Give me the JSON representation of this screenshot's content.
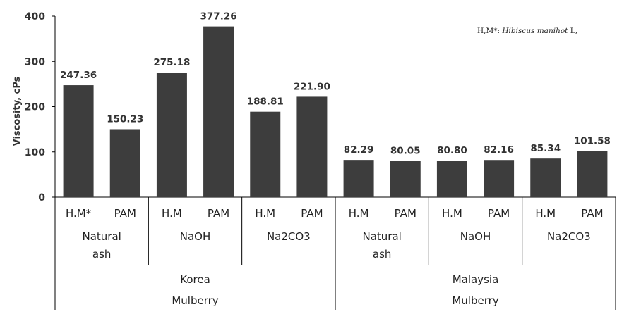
{
  "chart_data": {
    "type": "bar",
    "ylabel": "Viscosity, cPs",
    "ylim": [
      0,
      400
    ],
    "yticks": [
      "0",
      "100",
      "200",
      "300",
      "400"
    ],
    "grid": false,
    "note": {
      "prefix": "H,M*: ",
      "species": "Hibiscus manihot",
      "suffix": " L,"
    },
    "bars": [
      {
        "label": "H.M*",
        "value": 247.36,
        "value_label": "247.36"
      },
      {
        "label": "PAM",
        "value": 150.23,
        "value_label": "150.23"
      },
      {
        "label": "H.M",
        "value": 275.18,
        "value_label": "275.18"
      },
      {
        "label": "PAM",
        "value": 377.26,
        "value_label": "377.26"
      },
      {
        "label": "H.M",
        "value": 188.81,
        "value_label": "188.81"
      },
      {
        "label": "PAM",
        "value": 221.9,
        "value_label": "221.90"
      },
      {
        "label": "H.M",
        "value": 82.29,
        "value_label": "82.29"
      },
      {
        "label": "PAM",
        "value": 80.05,
        "value_label": "80.05"
      },
      {
        "label": "H.M",
        "value": 80.8,
        "value_label": "80.80"
      },
      {
        "label": "PAM",
        "value": 82.16,
        "value_label": "82.16"
      },
      {
        "label": "H.M",
        "value": 85.34,
        "value_label": "85.34"
      },
      {
        "label": "PAM",
        "value": 101.58,
        "value_label": "101.58"
      }
    ],
    "treatments": [
      {
        "lines": [
          "Natural",
          "ash"
        ]
      },
      {
        "lines": [
          "NaOH"
        ]
      },
      {
        "lines": [
          "Na2CO3"
        ]
      },
      {
        "lines": [
          "Natural",
          "ash"
        ]
      },
      {
        "lines": [
          "NaOH"
        ]
      },
      {
        "lines": [
          "Na2CO3"
        ]
      }
    ],
    "regions": [
      {
        "lines": [
          "Korea",
          "Mulberry"
        ]
      },
      {
        "lines": [
          "Malaysia",
          "Mulberry"
        ]
      }
    ],
    "colors": {
      "bar": "#3d3d3d",
      "axis": "#000000",
      "text": "#333333"
    }
  }
}
